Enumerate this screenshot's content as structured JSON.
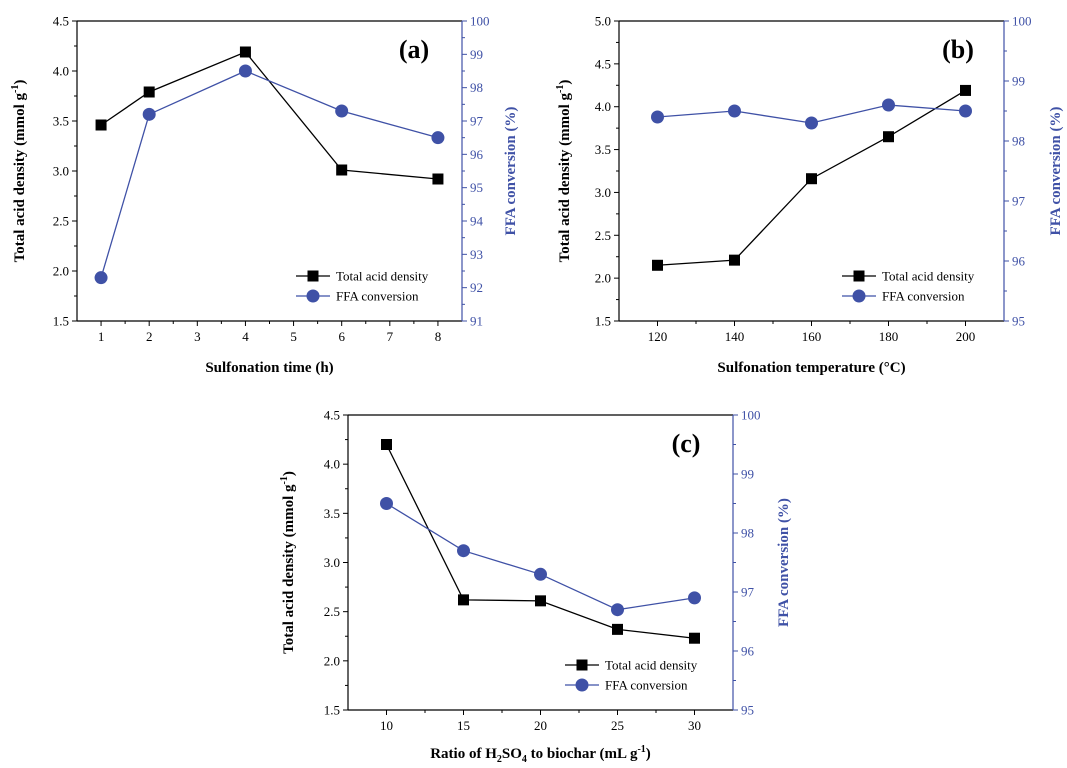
{
  "colors": {
    "left_series": "#000000",
    "right_series": "#3f51a6",
    "right_axis": "#3f51a6",
    "axis": "#000000"
  },
  "chart_data": [
    {
      "type": "line",
      "panel_label": "(a)",
      "xlabel": "Sulfonation time (h)",
      "ylabel_left": "Total acid density (mmol g",
      "ylabel_left_sup": "-1",
      "ylabel_left_end": ")",
      "ylabel_right": "FFA conversion (%)",
      "xlim": [
        0.5,
        8.5
      ],
      "xticks": [
        1,
        2,
        3,
        4,
        5,
        6,
        7,
        8
      ],
      "ylim_left": [
        1.5,
        4.5
      ],
      "yticks_left": [
        "1.5",
        "2.0",
        "2.5",
        "3.0",
        "3.5",
        "4.0",
        "4.5"
      ],
      "ylim_right": [
        91,
        100
      ],
      "yticks_right": [
        "91",
        "92",
        "93",
        "94",
        "95",
        "96",
        "97",
        "98",
        "99",
        "100"
      ],
      "legend_position": "bottom-right",
      "series": [
        {
          "name": "Total acid density",
          "axis": "left",
          "marker": "square",
          "x": [
            1,
            2,
            4,
            6,
            8
          ],
          "values": [
            3.46,
            3.79,
            4.19,
            3.01,
            2.92
          ]
        },
        {
          "name": "FFA conversion",
          "axis": "right",
          "marker": "circle",
          "x": [
            1,
            2,
            4,
            6,
            8
          ],
          "values": [
            92.3,
            97.2,
            98.5,
            97.3,
            96.5
          ]
        }
      ]
    },
    {
      "type": "line",
      "panel_label": "(b)",
      "xlabel": "Sulfonation temperature (°C)",
      "ylabel_left": "Total acid density (mmol g",
      "ylabel_left_sup": "-1",
      "ylabel_left_end": ")",
      "ylabel_right": "FFA conversion (%)",
      "xlim": [
        110,
        210
      ],
      "xticks": [
        120,
        140,
        160,
        180,
        200
      ],
      "ylim_left": [
        1.5,
        5.0
      ],
      "yticks_left": [
        "1.5",
        "2.0",
        "2.5",
        "3.0",
        "3.5",
        "4.0",
        "4.5",
        "5.0"
      ],
      "ylim_right": [
        95,
        100
      ],
      "yticks_right": [
        "95",
        "96",
        "97",
        "98",
        "99",
        "100"
      ],
      "legend_position": "bottom-right",
      "series": [
        {
          "name": "Total acid density",
          "axis": "left",
          "marker": "square",
          "x": [
            120,
            140,
            160,
            180,
            200
          ],
          "values": [
            2.15,
            2.21,
            3.16,
            3.65,
            4.19
          ]
        },
        {
          "name": "FFA conversion",
          "axis": "right",
          "marker": "circle",
          "x": [
            120,
            140,
            160,
            180,
            200
          ],
          "values": [
            98.4,
            98.5,
            98.3,
            98.6,
            98.5
          ]
        }
      ]
    },
    {
      "type": "line",
      "panel_label": "(c)",
      "xlabel_parts": [
        "Ratio of H",
        "2",
        "SO",
        "4",
        " to biochar (mL g",
        "-1",
        ")"
      ],
      "ylabel_left": "Total acid density (mmol g",
      "ylabel_left_sup": "-1",
      "ylabel_left_end": ")",
      "ylabel_right": "FFA conversion (%)",
      "xlim": [
        7.5,
        32.5
      ],
      "xticks": [
        10,
        15,
        20,
        25,
        30
      ],
      "ylim_left": [
        1.5,
        4.5
      ],
      "yticks_left": [
        "1.5",
        "2.0",
        "2.5",
        "3.0",
        "3.5",
        "4.0",
        "4.5"
      ],
      "ylim_right": [
        95,
        100
      ],
      "yticks_right": [
        "95",
        "96",
        "97",
        "98",
        "99",
        "100"
      ],
      "legend_position": "bottom-right",
      "series": [
        {
          "name": "Total acid density",
          "axis": "left",
          "marker": "square",
          "x": [
            10,
            15,
            20,
            25,
            30
          ],
          "values": [
            4.2,
            2.62,
            2.61,
            2.32,
            2.23
          ]
        },
        {
          "name": "FFA conversion",
          "axis": "right",
          "marker": "circle",
          "x": [
            10,
            15,
            20,
            25,
            30
          ],
          "values": [
            98.5,
            97.7,
            97.3,
            96.7,
            96.9
          ]
        }
      ]
    }
  ]
}
